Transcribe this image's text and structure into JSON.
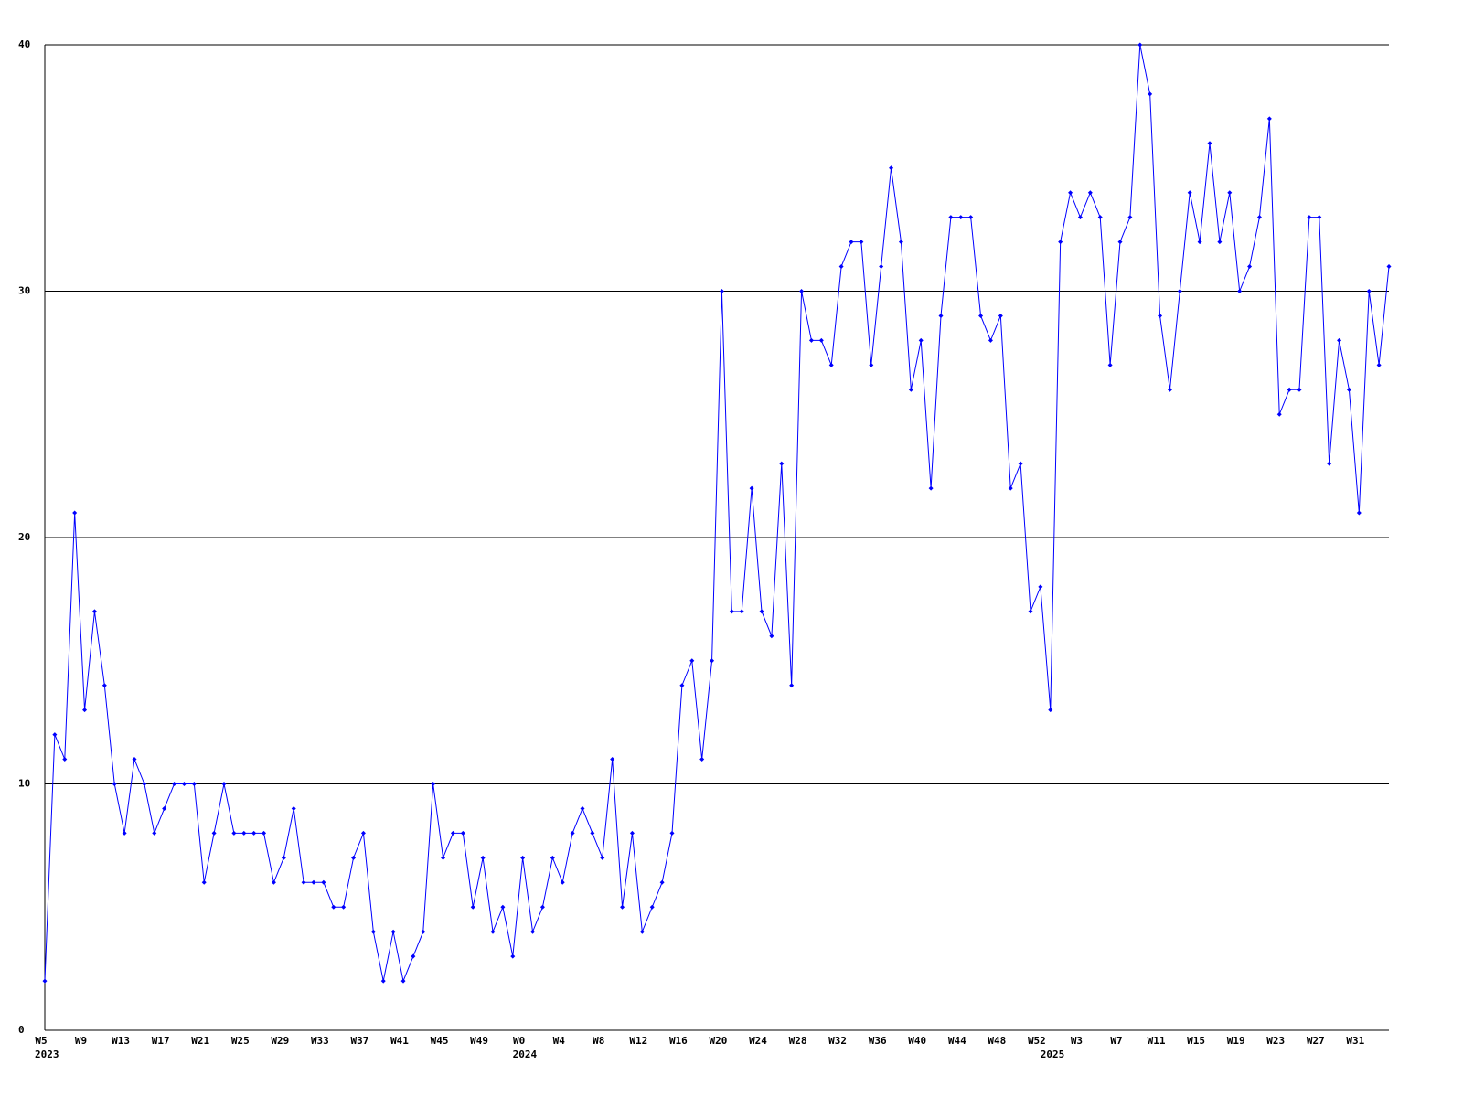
{
  "chart_data": {
    "type": "line",
    "categories": [
      "W5",
      null,
      null,
      null,
      "W9",
      null,
      null,
      null,
      "W13",
      null,
      null,
      null,
      "W17",
      null,
      null,
      null,
      "W21",
      null,
      null,
      null,
      "W25",
      null,
      null,
      null,
      "W29",
      null,
      null,
      null,
      "W33",
      null,
      null,
      null,
      "W37",
      null,
      null,
      null,
      "W41",
      null,
      null,
      null,
      "W45",
      null,
      null,
      null,
      "W49",
      null,
      null,
      null,
      "W0",
      null,
      null,
      null,
      "W4",
      null,
      null,
      null,
      "W8",
      null,
      null,
      null,
      "W12",
      null,
      null,
      null,
      "W16",
      null,
      null,
      null,
      "W20",
      null,
      null,
      null,
      "W24",
      null,
      null,
      null,
      "W28",
      null,
      null,
      null,
      "W32",
      null,
      null,
      null,
      "W36",
      null,
      null,
      null,
      "W40",
      null,
      null,
      null,
      "W44",
      null,
      null,
      null,
      "W48",
      null,
      null,
      null,
      "W52",
      null,
      null,
      null,
      "W3",
      null,
      null,
      null,
      "W7",
      null,
      null,
      null,
      "W11",
      null,
      null,
      null,
      "W15",
      null,
      null,
      null,
      "W19",
      null,
      null,
      null,
      "W23",
      null,
      null,
      null,
      "W27",
      null,
      null,
      null,
      "W31",
      null,
      null,
      null
    ],
    "category_years": [
      "2023",
      null,
      null,
      null,
      null,
      null,
      null,
      null,
      null,
      null,
      null,
      null,
      null,
      null,
      null,
      null,
      null,
      null,
      null,
      null,
      null,
      null,
      null,
      null,
      null,
      null,
      null,
      null,
      null,
      null,
      null,
      null,
      null,
      null,
      null,
      null,
      null,
      null,
      null,
      null,
      null,
      null,
      null,
      null,
      null,
      null,
      null,
      null,
      "2024",
      null,
      null,
      null,
      null,
      null,
      null,
      null,
      null,
      null,
      null,
      null,
      null,
      null,
      null,
      null,
      null,
      null,
      null,
      null,
      null,
      null,
      null,
      null,
      null,
      null,
      null,
      null,
      null,
      null,
      null,
      null,
      null,
      null,
      null,
      null,
      null,
      null,
      null,
      null,
      null,
      null,
      null,
      null,
      null,
      null,
      null,
      null,
      null,
      null,
      null,
      null,
      null,
      "2025",
      null,
      null,
      null,
      null,
      null,
      null,
      null,
      null,
      null,
      null,
      null,
      null,
      null,
      null,
      null,
      null,
      null,
      null,
      null,
      null,
      null,
      null,
      null,
      null,
      null,
      null,
      null,
      null,
      null,
      null,
      null,
      null,
      null,
      null
    ],
    "series": [
      {
        "color": "#0000ff",
        "values": [
          2,
          12,
          11,
          21,
          13,
          17,
          14,
          10,
          8,
          11,
          10,
          8,
          9,
          10,
          10,
          10,
          6,
          8,
          10,
          8,
          8,
          8,
          8,
          6,
          7,
          9,
          6,
          6,
          6,
          5,
          5,
          7,
          8,
          4,
          2,
          4,
          2,
          3,
          4,
          10,
          7,
          8,
          8,
          5,
          7,
          4,
          5,
          3,
          7,
          4,
          5,
          7,
          6,
          8,
          9,
          8,
          7,
          11,
          5,
          8,
          4,
          5,
          6,
          8,
          14,
          15,
          11,
          15,
          30,
          17,
          17,
          22,
          17,
          16,
          23,
          14,
          30,
          28,
          28,
          27,
          31,
          32,
          32,
          27,
          31,
          35,
          32,
          26,
          28,
          22,
          29,
          33,
          33,
          33,
          29,
          28,
          29,
          22,
          23,
          17,
          18,
          13,
          32,
          34,
          33,
          34,
          33,
          27,
          32,
          33,
          40,
          38,
          29,
          26,
          30,
          34,
          32,
          36,
          32,
          34,
          30,
          31,
          33,
          37,
          25,
          26,
          26,
          33,
          33,
          23,
          28,
          26,
          21,
          30,
          27,
          31
        ]
      }
    ],
    "ylim": [
      0,
      40
    ],
    "yticks": [
      0,
      10,
      20,
      30,
      40
    ],
    "grid": true
  }
}
